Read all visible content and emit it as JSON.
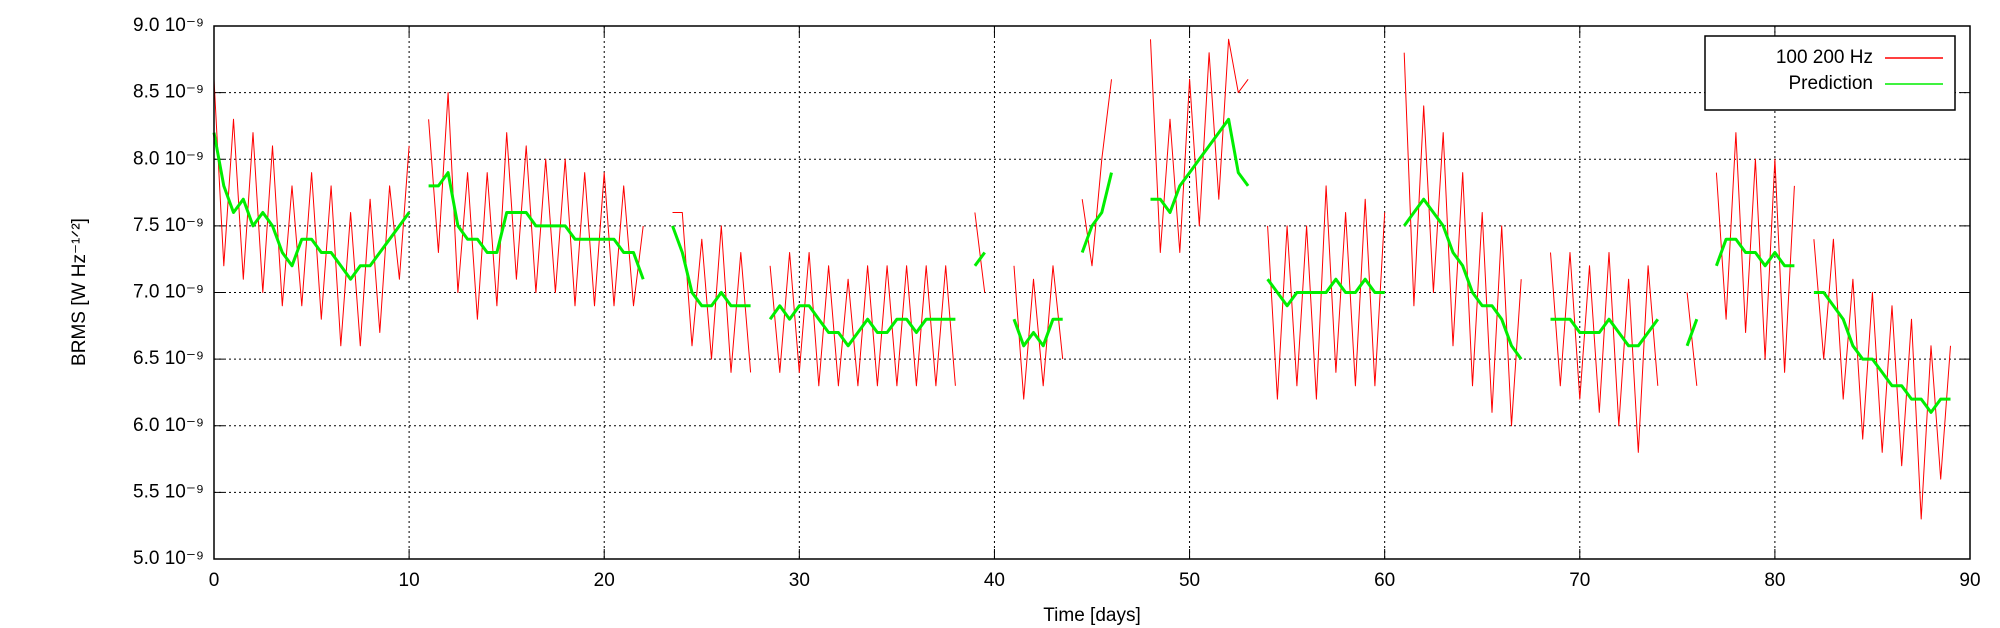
{
  "chart_data": {
    "type": "line",
    "xlabel": "Time [days]",
    "ylabel": "BRMS [W Hz⁻¹ᐟ²]",
    "xlim": [
      0,
      90
    ],
    "xticks": [
      0,
      10,
      20,
      30,
      40,
      50,
      60,
      70,
      80,
      90
    ],
    "ylim": [
      5e-09,
      9e-09
    ],
    "yticks": [
      {
        "value": 5e-09,
        "label": "5.0 10⁻⁹"
      },
      {
        "value": 5.5e-09,
        "label": "5.5 10⁻⁹"
      },
      {
        "value": 6e-09,
        "label": "6.0 10⁻⁹"
      },
      {
        "value": 6.5e-09,
        "label": "6.5 10⁻⁹"
      },
      {
        "value": 7e-09,
        "label": "7.0 10⁻⁹"
      },
      {
        "value": 7.5e-09,
        "label": "7.5 10⁻⁹"
      },
      {
        "value": 8e-09,
        "label": "8.0 10⁻⁹"
      },
      {
        "value": 8.5e-09,
        "label": "8.5 10⁻⁹"
      },
      {
        "value": 9e-09,
        "label": "9.0 10⁻⁹"
      }
    ],
    "grid": true,
    "legend": "top-right",
    "x": [
      0,
      0.5,
      1,
      1.5,
      2,
      2.5,
      3,
      3.5,
      4,
      4.5,
      5,
      5.5,
      6,
      6.5,
      7,
      7.5,
      8,
      8.5,
      9,
      9.5,
      10,
      10.5,
      11,
      11.5,
      12,
      12.5,
      13,
      13.5,
      14,
      14.5,
      15,
      15.5,
      16,
      16.5,
      17,
      17.5,
      18,
      18.5,
      19,
      19.5,
      20,
      20.5,
      21,
      21.5,
      22,
      22.5,
      23,
      23.5,
      24,
      24.5,
      25,
      25.5,
      26,
      26.5,
      27,
      27.5,
      28,
      28.5,
      29,
      29.5,
      30,
      30.5,
      31,
      31.5,
      32,
      32.5,
      33,
      33.5,
      34,
      34.5,
      35,
      35.5,
      36,
      36.5,
      37,
      37.5,
      38,
      38.5,
      39,
      39.5,
      40,
      40.5,
      41,
      41.5,
      42,
      42.5,
      43,
      43.5,
      44,
      44.5,
      45,
      45.5,
      46,
      46.5,
      47,
      47.5,
      48,
      48.5,
      49,
      49.5,
      50,
      50.5,
      51,
      51.5,
      52,
      52.5,
      53,
      53.5,
      54,
      54.5,
      55,
      55.5,
      56,
      56.5,
      57,
      57.5,
      58,
      58.5,
      59,
      59.5,
      60,
      60.5,
      61,
      61.5,
      62,
      62.5,
      63,
      63.5,
      64,
      64.5,
      65,
      65.5,
      66,
      66.5,
      67,
      67.5,
      68,
      68.5,
      69,
      69.5,
      70,
      70.5,
      71,
      71.5,
      72,
      72.5,
      73,
      73.5,
      74,
      74.5,
      75,
      75.5,
      76,
      76.5,
      77,
      77.5,
      78,
      78.5,
      79,
      79.5,
      80,
      80.5,
      81,
      81.5,
      82,
      82.5,
      83,
      83.5,
      84,
      84.5,
      85,
      85.5,
      86,
      86.5,
      87,
      87.5,
      88,
      88.5,
      89
    ],
    "series": [
      {
        "name": "100 200 Hz",
        "color": "#ff0000",
        "width": 1,
        "values": [
          8.6e-09,
          7.2e-09,
          8.3e-09,
          7.1e-09,
          8.2e-09,
          7e-09,
          8.1e-09,
          6.9e-09,
          7.8e-09,
          6.9e-09,
          7.9e-09,
          6.8e-09,
          7.8e-09,
          6.6e-09,
          7.6e-09,
          6.6e-09,
          7.7e-09,
          6.7e-09,
          7.8e-09,
          7.1e-09,
          8.1e-09,
          null,
          8.3e-09,
          7.3e-09,
          8.5e-09,
          7e-09,
          7.9e-09,
          6.8e-09,
          7.9e-09,
          6.9e-09,
          8.2e-09,
          7.1e-09,
          8.1e-09,
          7e-09,
          8e-09,
          7e-09,
          8e-09,
          6.9e-09,
          7.9e-09,
          6.9e-09,
          7.9e-09,
          6.9e-09,
          7.8e-09,
          6.9e-09,
          7.5e-09,
          null,
          null,
          7.6e-09,
          7.6e-09,
          6.6e-09,
          7.4e-09,
          6.5e-09,
          7.5e-09,
          6.4e-09,
          7.3e-09,
          6.4e-09,
          null,
          7.2e-09,
          6.4e-09,
          7.3e-09,
          6.4e-09,
          7.3e-09,
          6.3e-09,
          7.2e-09,
          6.3e-09,
          7.1e-09,
          6.3e-09,
          7.2e-09,
          6.3e-09,
          7.2e-09,
          6.3e-09,
          7.2e-09,
          6.3e-09,
          7.2e-09,
          6.3e-09,
          7.2e-09,
          6.3e-09,
          null,
          7.6e-09,
          7e-09,
          null,
          null,
          7.2e-09,
          6.2e-09,
          7.1e-09,
          6.3e-09,
          7.2e-09,
          6.5e-09,
          null,
          7.7e-09,
          7.2e-09,
          8e-09,
          8.6e-09,
          null,
          null,
          null,
          8.9e-09,
          7.3e-09,
          8.3e-09,
          7.3e-09,
          8.6e-09,
          7.5e-09,
          8.8e-09,
          7.7e-09,
          8.9e-09,
          8.5e-09,
          8.6e-09,
          null,
          7.5e-09,
          6.2e-09,
          7.5e-09,
          6.3e-09,
          7.5e-09,
          6.2e-09,
          7.8e-09,
          6.4e-09,
          7.6e-09,
          6.3e-09,
          7.7e-09,
          6.3e-09,
          7.6e-09,
          null,
          8.8e-09,
          6.9e-09,
          8.4e-09,
          7e-09,
          8.2e-09,
          6.6e-09,
          7.9e-09,
          6.3e-09,
          7.6e-09,
          6.1e-09,
          7.5e-09,
          6e-09,
          7.1e-09,
          null,
          null,
          7.3e-09,
          6.3e-09,
          7.3e-09,
          6.2e-09,
          7.2e-09,
          6.1e-09,
          7.3e-09,
          6e-09,
          7.1e-09,
          5.8e-09,
          7.2e-09,
          6.3e-09,
          null,
          null,
          7e-09,
          6.3e-09,
          null,
          7.9e-09,
          6.8e-09,
          8.2e-09,
          6.7e-09,
          8e-09,
          6.5e-09,
          8e-09,
          6.4e-09,
          7.8e-09,
          null,
          7.4e-09,
          6.5e-09,
          7.4e-09,
          6.2e-09,
          7.1e-09,
          5.9e-09,
          7e-09,
          5.8e-09,
          6.9e-09,
          5.7e-09,
          6.8e-09,
          5.3e-09,
          6.6e-09,
          5.6e-09,
          6.6e-09
        ]
      },
      {
        "name": "Prediction",
        "color": "#00ee00",
        "width": 3,
        "values": [
          8.2e-09,
          7.8e-09,
          7.6e-09,
          7.7e-09,
          7.5e-09,
          7.6e-09,
          7.5e-09,
          7.3e-09,
          7.2e-09,
          7.4e-09,
          7.4e-09,
          7.3e-09,
          7.3e-09,
          7.2e-09,
          7.1e-09,
          7.2e-09,
          7.2e-09,
          7.3e-09,
          7.4e-09,
          7.5e-09,
          7.6e-09,
          null,
          7.8e-09,
          7.8e-09,
          7.9e-09,
          7.5e-09,
          7.4e-09,
          7.4e-09,
          7.3e-09,
          7.3e-09,
          7.6e-09,
          7.6e-09,
          7.6e-09,
          7.5e-09,
          7.5e-09,
          7.5e-09,
          7.5e-09,
          7.4e-09,
          7.4e-09,
          7.4e-09,
          7.4e-09,
          7.4e-09,
          7.3e-09,
          7.3e-09,
          7.1e-09,
          null,
          null,
          7.5e-09,
          7.3e-09,
          7e-09,
          6.9e-09,
          6.9e-09,
          7e-09,
          6.9e-09,
          6.9e-09,
          6.9e-09,
          null,
          6.8e-09,
          6.9e-09,
          6.8e-09,
          6.9e-09,
          6.9e-09,
          6.8e-09,
          6.7e-09,
          6.7e-09,
          6.6e-09,
          6.7e-09,
          6.8e-09,
          6.7e-09,
          6.7e-09,
          6.8e-09,
          6.8e-09,
          6.7e-09,
          6.8e-09,
          6.8e-09,
          6.8e-09,
          6.8e-09,
          null,
          7.2e-09,
          7.3e-09,
          null,
          null,
          6.8e-09,
          6.6e-09,
          6.7e-09,
          6.6e-09,
          6.8e-09,
          6.8e-09,
          null,
          7.3e-09,
          7.5e-09,
          7.6e-09,
          7.9e-09,
          null,
          null,
          null,
          7.7e-09,
          7.7e-09,
          7.6e-09,
          7.8e-09,
          7.9e-09,
          8e-09,
          8.1e-09,
          8.2e-09,
          8.3e-09,
          7.9e-09,
          7.8e-09,
          null,
          7.1e-09,
          7e-09,
          6.9e-09,
          7e-09,
          7e-09,
          7e-09,
          7e-09,
          7.1e-09,
          7e-09,
          7e-09,
          7.1e-09,
          7e-09,
          7e-09,
          null,
          7.5e-09,
          7.6e-09,
          7.7e-09,
          7.6e-09,
          7.5e-09,
          7.3e-09,
          7.2e-09,
          7e-09,
          6.9e-09,
          6.9e-09,
          6.8e-09,
          6.6e-09,
          6.5e-09,
          null,
          null,
          6.8e-09,
          6.8e-09,
          6.8e-09,
          6.7e-09,
          6.7e-09,
          6.7e-09,
          6.8e-09,
          6.7e-09,
          6.6e-09,
          6.6e-09,
          6.7e-09,
          6.8e-09,
          null,
          null,
          6.6e-09,
          6.8e-09,
          null,
          7.2e-09,
          7.4e-09,
          7.4e-09,
          7.3e-09,
          7.3e-09,
          7.2e-09,
          7.3e-09,
          7.2e-09,
          7.2e-09,
          null,
          7e-09,
          7e-09,
          6.9e-09,
          6.8e-09,
          6.6e-09,
          6.5e-09,
          6.5e-09,
          6.4e-09,
          6.3e-09,
          6.3e-09,
          6.2e-09,
          6.2e-09,
          6.1e-09,
          6.2e-09,
          6.2e-09
        ]
      }
    ]
  }
}
